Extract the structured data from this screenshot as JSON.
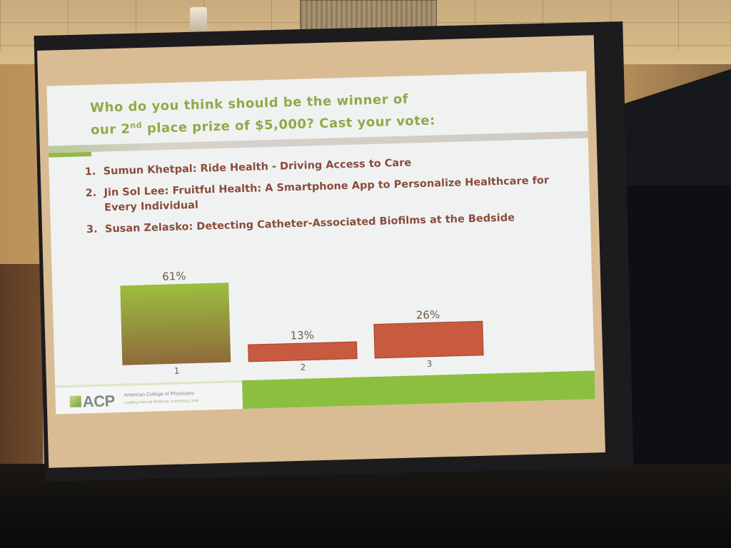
{
  "slide": {
    "title_line1": "Who do you think should be the winner of",
    "title_line2_pre": "our 2",
    "title_line2_sup": "nd",
    "title_line2_post": " place prize of $5,000?  Cast your vote:",
    "options": [
      {
        "num": "1.",
        "text": "Sumun Khetpal:  Ride Health - Driving Access to Care"
      },
      {
        "num": "2.",
        "text": "Jin Sol Lee:  Fruitful Health: A Smartphone App to Personalize Healthcare for Every Individual"
      },
      {
        "num": "3.",
        "text": "Susan Zelasko:  Detecting Catheter-Associated Biofilms at the Bedside"
      }
    ]
  },
  "chart_data": {
    "type": "bar",
    "categories": [
      "1",
      "2",
      "3"
    ],
    "values": [
      61,
      13,
      26
    ],
    "value_labels": [
      "61%",
      "13%",
      "26%"
    ],
    "ylim": [
      0,
      70
    ],
    "grid": false,
    "colors": {
      "winner_top": "#9bbf3f",
      "winner_bottom": "#8f6a3c",
      "other": "#c75a3f",
      "other_border": "#a8442d"
    }
  },
  "footer": {
    "logo_text": "ACP",
    "org_name": "American College of Physicians",
    "tagline": "Leading Internal Medicine, Improving Lives"
  },
  "colors": {
    "title": "#8faa47",
    "options_text": "#8a4c3a",
    "footer_green": "#8cbf3f"
  }
}
